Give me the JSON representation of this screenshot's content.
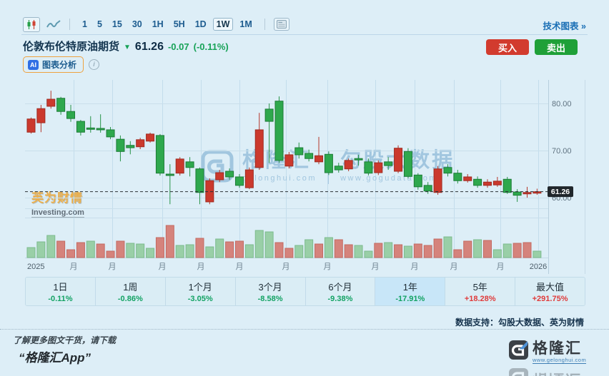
{
  "header": {
    "intervals": [
      "1",
      "5",
      "15",
      "30",
      "1H",
      "5H",
      "1D",
      "1W",
      "1M"
    ],
    "selected_interval": "1W",
    "tech_chart_link": "技术图表",
    "tech_chart_arrow": "»"
  },
  "quote": {
    "name": "伦敦布伦特原油期货",
    "direction_arrow": "▼",
    "price": "61.26",
    "change": "-0.07",
    "change_pct": "(-0.11%)"
  },
  "ai": {
    "badge": "AI",
    "label": "图表分析",
    "info": "i"
  },
  "actions": {
    "buy": "买入",
    "sell": "卖出"
  },
  "watermarks": {
    "center_brand": "格隆汇",
    "center_brand_url": "gelonghui.com",
    "center_partner": "勾股大数据",
    "center_partner_url": "www.gogudata.com",
    "left_brand": "英为财情",
    "left_brand_sub": "Investing.com"
  },
  "colors": {
    "up_red": "#cb392d",
    "down_green": "#2ea84d",
    "buy_button": "#d23b2e",
    "sell_button": "#1fa038",
    "link_blue": "#1a6fb5",
    "change_green": "#17a257",
    "price_tag_bg": "#20262b"
  },
  "chart_data": {
    "type": "candlestick",
    "interval": "weekly",
    "title": "伦敦布伦特原油期货 1W",
    "legend_position": "none",
    "grid": true,
    "y_ticks": [
      "80.00",
      "70.00",
      "60.00"
    ],
    "y_tick_values": [
      80,
      70,
      60
    ],
    "y_range_approx": [
      57.5,
      84.5
    ],
    "x_labels": [
      "2025",
      "月",
      "月",
      "月",
      "月",
      "月",
      "月",
      "月",
      "月",
      "月",
      "月",
      "月",
      "2026"
    ],
    "last_price": "61.26",
    "last_price_value": 61.26,
    "candles_ohlc": [
      [
        73.9,
        77.0,
        73.6,
        76.7
      ],
      [
        75.9,
        79.7,
        73.9,
        78.9
      ],
      [
        79.4,
        82.7,
        78.9,
        80.9
      ],
      [
        81.1,
        81.4,
        77.6,
        78.3
      ],
      [
        78.3,
        79.7,
        76.1,
        76.8
      ],
      [
        76.2,
        76.5,
        73.2,
        73.9
      ],
      [
        74.8,
        77.3,
        73.8,
        74.5
      ],
      [
        74.7,
        77.7,
        73.8,
        74.4
      ],
      [
        74.4,
        75.0,
        72.4,
        72.9
      ],
      [
        72.4,
        73.2,
        67.7,
        69.8
      ],
      [
        71.1,
        72.0,
        69.2,
        70.6
      ],
      [
        70.8,
        72.7,
        70.3,
        72.3
      ],
      [
        72.0,
        73.8,
        71.7,
        73.5
      ],
      [
        73.2,
        73.5,
        64.7,
        65.2
      ],
      [
        65.0,
        67.1,
        58.6,
        64.7
      ],
      [
        65.2,
        68.6,
        64.7,
        68.2
      ],
      [
        67.6,
        68.6,
        64.5,
        66.4
      ],
      [
        66.1,
        66.4,
        58.6,
        61.1
      ],
      [
        59.1,
        64.1,
        58.6,
        63.6
      ],
      [
        63.8,
        65.9,
        63.3,
        65.3
      ],
      [
        65.6,
        66.2,
        63.8,
        64.4
      ],
      [
        64.4,
        65.0,
        62.1,
        62.6
      ],
      [
        62.1,
        66.4,
        61.8,
        65.9
      ],
      [
        66.4,
        78.0,
        65.9,
        74.4
      ],
      [
        78.8,
        80.0,
        67.4,
        76.2
      ],
      [
        80.5,
        81.5,
        67.4,
        67.9
      ],
      [
        66.7,
        69.7,
        66.2,
        69.1
      ],
      [
        70.6,
        71.7,
        68.3,
        69.1
      ],
      [
        69.4,
        70.2,
        67.7,
        68.3
      ],
      [
        67.6,
        72.9,
        67.1,
        68.9
      ],
      [
        69.2,
        69.8,
        64.8,
        65.3
      ],
      [
        66.7,
        67.4,
        65.3,
        65.9
      ],
      [
        66.1,
        68.3,
        65.6,
        67.9
      ],
      [
        68.3,
        69.1,
        66.8,
        68.0
      ],
      [
        67.6,
        68.3,
        64.7,
        65.2
      ],
      [
        65.3,
        67.9,
        64.8,
        67.4
      ],
      [
        67.6,
        68.6,
        65.9,
        66.8
      ],
      [
        65.6,
        71.1,
        65.2,
        70.5
      ],
      [
        69.8,
        70.5,
        64.1,
        64.5
      ],
      [
        64.8,
        65.2,
        61.7,
        62.3
      ],
      [
        62.6,
        63.3,
        60.8,
        61.4
      ],
      [
        61.1,
        66.7,
        60.6,
        66.1
      ],
      [
        66.4,
        67.1,
        64.5,
        65.2
      ],
      [
        65.2,
        65.9,
        63.0,
        63.6
      ],
      [
        63.6,
        65.0,
        63.2,
        64.4
      ],
      [
        63.9,
        64.5,
        62.1,
        62.6
      ],
      [
        62.6,
        63.9,
        62.1,
        63.3
      ],
      [
        62.7,
        64.4,
        62.3,
        63.5
      ],
      [
        63.9,
        64.4,
        60.8,
        61.1
      ],
      [
        61.2,
        61.8,
        59.1,
        60.5
      ],
      [
        60.8,
        62.3,
        60.0,
        61.1
      ],
      [
        60.95,
        61.9,
        60.6,
        61.26
      ]
    ],
    "volumes": [
      [
        14,
        "g"
      ],
      [
        22,
        "g"
      ],
      [
        31,
        "g"
      ],
      [
        23,
        "r"
      ],
      [
        11,
        "r"
      ],
      [
        21,
        "r"
      ],
      [
        23,
        "g"
      ],
      [
        19,
        "r"
      ],
      [
        9,
        "r"
      ],
      [
        23,
        "r"
      ],
      [
        20,
        "g"
      ],
      [
        19,
        "g"
      ],
      [
        13,
        "g"
      ],
      [
        28,
        "r"
      ],
      [
        45,
        "r"
      ],
      [
        17,
        "g"
      ],
      [
        18,
        "g"
      ],
      [
        27,
        "r"
      ],
      [
        15,
        "g"
      ],
      [
        26,
        "g"
      ],
      [
        22,
        "r"
      ],
      [
        23,
        "r"
      ],
      [
        18,
        "g"
      ],
      [
        38,
        "g"
      ],
      [
        36,
        "g"
      ],
      [
        21,
        "r"
      ],
      [
        13,
        "r"
      ],
      [
        17,
        "g"
      ],
      [
        25,
        "g"
      ],
      [
        19,
        "r"
      ],
      [
        28,
        "g"
      ],
      [
        25,
        "r"
      ],
      [
        18,
        "r"
      ],
      [
        17,
        "g"
      ],
      [
        9,
        "g"
      ],
      [
        20,
        "r"
      ],
      [
        21,
        "g"
      ],
      [
        18,
        "r"
      ],
      [
        16,
        "g"
      ],
      [
        19,
        "r"
      ],
      [
        17,
        "r"
      ],
      [
        26,
        "r"
      ],
      [
        29,
        "g"
      ],
      [
        11,
        "r"
      ],
      [
        23,
        "r"
      ],
      [
        25,
        "g"
      ],
      [
        24,
        "r"
      ],
      [
        11,
        "g"
      ],
      [
        19,
        "g"
      ],
      [
        20,
        "r"
      ],
      [
        21,
        "r"
      ],
      [
        9,
        "g"
      ]
    ]
  },
  "stats": {
    "cells": [
      {
        "label": "1日",
        "value": "-0.11%",
        "trend": "down",
        "selected": false
      },
      {
        "label": "1周",
        "value": "-0.86%",
        "trend": "down",
        "selected": false
      },
      {
        "label": "1个月",
        "value": "-3.05%",
        "trend": "down",
        "selected": false
      },
      {
        "label": "3个月",
        "value": "-8.58%",
        "trend": "down",
        "selected": false
      },
      {
        "label": "6个月",
        "value": "-9.38%",
        "trend": "down",
        "selected": false
      },
      {
        "label": "1年",
        "value": "-17.91%",
        "trend": "down",
        "selected": true
      },
      {
        "label": "5年",
        "value": "+18.28%",
        "trend": "up",
        "selected": false
      },
      {
        "label": "最大值",
        "value": "+291.75%",
        "trend": "up",
        "selected": false
      }
    ]
  },
  "footer": {
    "data_support": "数据支持：勾股大数据、英为财情",
    "promo_line1": "了解更多图文干货，请下载",
    "promo_line2": "“格隆汇App”",
    "logo_text": "格隆汇",
    "logo_url": "www.gelonghui.com"
  }
}
